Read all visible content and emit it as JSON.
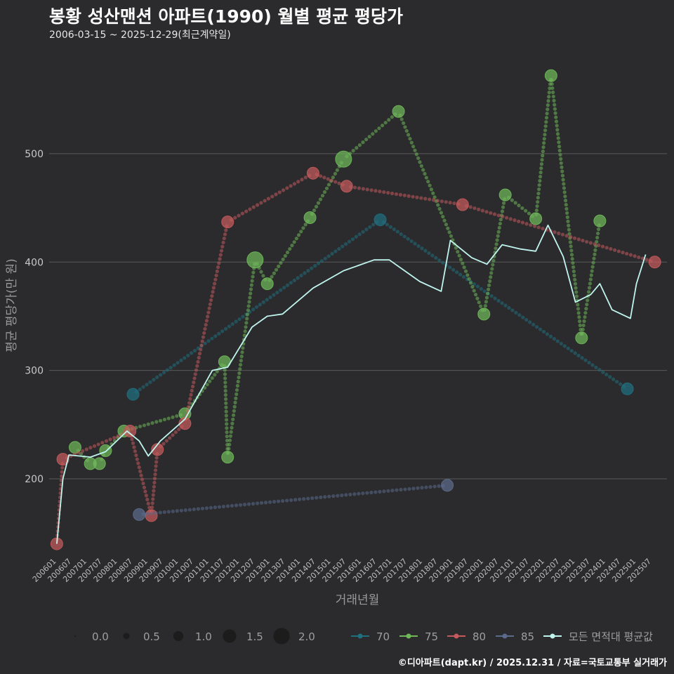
{
  "title": "봉황 성산맨션 아파트(1990) 월별 평균 평당가",
  "subtitle": "2006-03-15 ~ 2025-12-29(최근계약일)",
  "footer": "©디아파트(dapt.kr) / 2025.12.31 / 자료=국토교통부 실거래가",
  "chart_data": {
    "type": "line",
    "xlabel": "거래년월",
    "ylabel": "평균 평당가(만 원)",
    "ylim": [
      130,
      590
    ],
    "yticks": [
      200,
      300,
      400,
      500
    ],
    "xticks": [
      "200601",
      "200607",
      "200701",
      "200707",
      "200801",
      "200807",
      "200901",
      "200907",
      "201001",
      "201007",
      "201101",
      "201107",
      "201201",
      "201207",
      "201301",
      "201307",
      "201401",
      "201407",
      "201501",
      "201507",
      "201601",
      "201607",
      "201701",
      "201707",
      "201801",
      "201807",
      "201901",
      "201907",
      "202001",
      "202007",
      "202101",
      "202107",
      "202201",
      "202207",
      "202301",
      "202307",
      "202401",
      "202407",
      "202501",
      "202507"
    ],
    "size_legend": {
      "values": [
        "0.0",
        "0.5",
        "1.0",
        "1.5",
        "2.0"
      ]
    },
    "series": [
      {
        "name": "70",
        "color": "#1f6f7f",
        "points": [
          [
            2008.6,
            278,
            1
          ],
          [
            2016.7,
            439,
            1
          ],
          [
            2024.8,
            283,
            1
          ]
        ]
      },
      {
        "name": "75",
        "color": "#6fb85a",
        "points": [
          [
            2006.7,
            229,
            1
          ],
          [
            2007.2,
            214,
            1
          ],
          [
            2007.5,
            214,
            1
          ],
          [
            2007.7,
            226,
            1
          ],
          [
            2008.3,
            244,
            1
          ],
          [
            2010.3,
            260,
            1
          ],
          [
            2011.6,
            308,
            1
          ],
          [
            2011.7,
            220,
            1
          ],
          [
            2012.6,
            402,
            2
          ],
          [
            2013.0,
            380,
            1
          ],
          [
            2014.4,
            441,
            1
          ],
          [
            2015.5,
            495,
            2
          ],
          [
            2017.3,
            539,
            1
          ],
          [
            2020.1,
            352,
            1
          ],
          [
            2020.8,
            462,
            1
          ],
          [
            2021.8,
            440,
            1
          ],
          [
            2022.3,
            572,
            1
          ],
          [
            2023.3,
            330,
            1
          ],
          [
            2023.9,
            438,
            1
          ]
        ]
      },
      {
        "name": "80",
        "color": "#c45a5c",
        "points": [
          [
            2006.1,
            140,
            1
          ],
          [
            2006.3,
            218,
            1
          ],
          [
            2008.5,
            244,
            1
          ],
          [
            2009.2,
            166,
            1
          ],
          [
            2009.4,
            227,
            1
          ],
          [
            2010.3,
            251,
            1
          ],
          [
            2011.7,
            437,
            1
          ],
          [
            2014.5,
            482,
            1
          ],
          [
            2015.6,
            470,
            1
          ],
          [
            2019.4,
            453,
            1
          ],
          [
            2025.7,
            400,
            1
          ]
        ]
      },
      {
        "name": "85",
        "color": "#5b6b8c",
        "points": [
          [
            2008.8,
            167,
            1
          ],
          [
            2018.9,
            194,
            1
          ]
        ]
      },
      {
        "name": "모든 면적대 평균값",
        "color": "#bff5ee",
        "points": [
          [
            2006.1,
            140
          ],
          [
            2006.3,
            200
          ],
          [
            2006.5,
            222
          ],
          [
            2007.2,
            220
          ],
          [
            2007.7,
            225
          ],
          [
            2008.4,
            244
          ],
          [
            2008.8,
            235
          ],
          [
            2009.1,
            221
          ],
          [
            2009.5,
            235
          ],
          [
            2010.3,
            255
          ],
          [
            2011.2,
            300
          ],
          [
            2011.7,
            303
          ],
          [
            2012.5,
            340
          ],
          [
            2013.0,
            350
          ],
          [
            2013.5,
            352
          ],
          [
            2014.5,
            376
          ],
          [
            2015.5,
            392
          ],
          [
            2016.5,
            402
          ],
          [
            2017.0,
            402
          ],
          [
            2018.0,
            382
          ],
          [
            2018.7,
            373
          ],
          [
            2019.0,
            420
          ],
          [
            2019.7,
            404
          ],
          [
            2020.2,
            398
          ],
          [
            2020.7,
            416
          ],
          [
            2021.3,
            412
          ],
          [
            2021.8,
            410
          ],
          [
            2022.2,
            434
          ],
          [
            2022.7,
            405
          ],
          [
            2023.1,
            363
          ],
          [
            2023.6,
            370
          ],
          [
            2023.9,
            380
          ],
          [
            2024.3,
            356
          ],
          [
            2024.9,
            348
          ],
          [
            2025.1,
            380
          ],
          [
            2025.4,
            407
          ]
        ]
      }
    ]
  }
}
